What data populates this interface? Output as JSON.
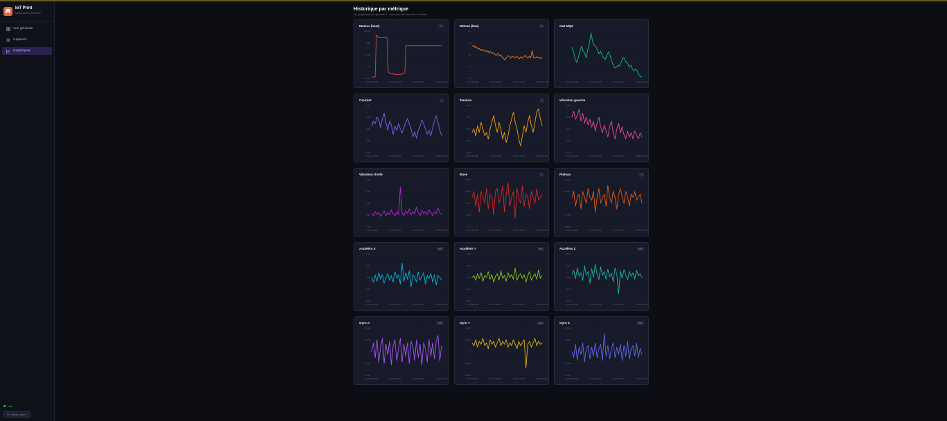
{
  "sidebar": {
    "brand_title": "IoT Print",
    "brand_subtitle": "Maintenance prédictive",
    "items": [
      {
        "label": "Vue générale",
        "icon": "dashboard-icon",
        "active": false
      },
      {
        "label": "Capteurs",
        "icon": "chip-icon",
        "active": false
      },
      {
        "label": "Graphiques",
        "icon": "chart-icon",
        "active": true
      }
    ],
    "status": "Live",
    "device": "ID : Wokko Ligne F"
  },
  "page": {
    "title": "Historique par métrique",
    "subtitle": "Un graphique par grandeur · mise jour de données fraîcheur"
  },
  "colors": {
    "background": "#0c0e14",
    "card": "#171b29",
    "accent": "#7c5cff"
  },
  "chart_data": [
    {
      "type": "line",
      "title": "Moteur (haut)",
      "unit": "°C",
      "color": "#ef4444",
      "ylim": [
        0.82,
        1.18
      ],
      "yticks": [
        "0.8275",
        "0.96",
        "1.1025",
        "1.14",
        "1.1775"
      ],
      "xticks": [
        "17:29:29.969",
        "17:30:19.440",
        "17:32:19.787",
        "18:03:01.144"
      ],
      "values": [
        0.83,
        0.83,
        0.83,
        0.83,
        1.15,
        1.14,
        1.13,
        1.13,
        1.13,
        1.13,
        1.13,
        1.13,
        1.13,
        1.13,
        0.87,
        0.86,
        0.86,
        0.86,
        0.86,
        0.85,
        0.85,
        0.85,
        0.85,
        0.85,
        0.85,
        0.85,
        0.86,
        0.86,
        0.86,
        1.07,
        1.07,
        1.07,
        1.07,
        1.07,
        1.07,
        1.07,
        1.07,
        1.07,
        1.07,
        1.07,
        1.07,
        1.07,
        1.07,
        1.07,
        1.07,
        1.07,
        1.07,
        1.07,
        1.07,
        1.07,
        1.07,
        1.07,
        1.07,
        1.07,
        1.07,
        1.07,
        1.07,
        1.07,
        1.07,
        1.07
      ]
    },
    {
      "type": "line",
      "title": "Moteur (bas)",
      "unit": "°C",
      "color": "#f97316",
      "ylim": [
        40,
        55
      ],
      "yticks": [
        "40",
        "44",
        "48",
        "51",
        "55"
      ],
      "xticks": [
        "17:29:29.969",
        "17:30:19.440",
        "17:32:19.787",
        "18:03:01.144"
      ],
      "values": [
        50.2,
        50.5,
        49.8,
        50.1,
        49.3,
        49.6,
        48.9,
        49.2,
        48.7,
        49.0,
        48.4,
        48.8,
        48.1,
        48.5,
        47.9,
        48.2,
        47.6,
        47.3,
        48.0,
        47.1,
        47.5,
        46.8,
        46.3,
        45.9,
        46.5,
        47.2,
        47.0,
        46.4,
        47.1,
        46.8,
        46.5,
        47.0,
        46.7,
        46.2,
        46.9,
        46.4,
        46.8,
        47.3,
        46.9,
        46.6,
        47.0,
        46.5,
        48.8,
        46.7,
        46.4,
        46.9,
        46.6,
        46.8,
        46.3,
        46.5
      ]
    },
    {
      "type": "line",
      "title": "Gaz MQ2",
      "unit": "",
      "color": "#10b981",
      "ylim": [
        480,
        980
      ],
      "yticks": [
        "~",
        "",
        "",
        ""
      ],
      "xticks": [
        "17:29:29.969",
        "17:30:19.440",
        "17:32:19.787",
        "18:03:01.144"
      ],
      "values": [
        810,
        760,
        690,
        650,
        700,
        760,
        820,
        770,
        750,
        700,
        790,
        850,
        960,
        870,
        830,
        820,
        780,
        740,
        770,
        720,
        700,
        680,
        730,
        760,
        720,
        660,
        620,
        590,
        600,
        620,
        610,
        650,
        700,
        690,
        650,
        640,
        600,
        620,
        580,
        560,
        580,
        560,
        520,
        500,
        495
      ]
    },
    {
      "type": "line",
      "title": "Courant",
      "unit": "A",
      "color": "#8b5cf6",
      "ylim": [
        0.38,
        0.74
      ],
      "yticks": [
        "0.74",
        "0.65",
        "0.56",
        "0.47",
        "0.38"
      ],
      "xticks": [
        "17:29:29.969",
        "17:30:19.440",
        "17:32:19.787",
        "18:03:01.144"
      ],
      "values": [
        0.58,
        0.62,
        0.6,
        0.65,
        0.63,
        0.57,
        0.64,
        0.68,
        0.61,
        0.55,
        0.62,
        0.59,
        0.52,
        0.58,
        0.55,
        0.6,
        0.56,
        0.53,
        0.57,
        0.61,
        0.64,
        0.6,
        0.56,
        0.5,
        0.54,
        0.49,
        0.55,
        0.58,
        0.63,
        0.6,
        0.56,
        0.52,
        0.55,
        0.51,
        0.57,
        0.62,
        0.66,
        0.61,
        0.55,
        0.51
      ]
    },
    {
      "type": "line",
      "title": "Tension",
      "unit": "V",
      "color": "#f59e0b",
      "ylim": [
        24.0,
        25.4
      ],
      "yticks": [
        "25.4",
        "25.0",
        "24.7",
        "24.4",
        "24.0"
      ],
      "xticks": [
        "17:29:29.969",
        "17:30:19.440",
        "17:32:19.787",
        "18:03:01.144"
      ],
      "values": [
        24.6,
        24.7,
        24.5,
        24.8,
        24.6,
        24.9,
        24.7,
        24.5,
        24.6,
        24.4,
        24.7,
        24.9,
        25.1,
        24.8,
        24.6,
        24.9,
        24.7,
        24.4,
        24.6,
        24.3,
        24.5,
        24.8,
        25.0,
        25.2,
        24.9,
        24.7,
        24.4,
        24.2,
        24.5,
        24.8,
        24.6,
        24.9,
        25.1,
        24.8,
        24.6,
        24.9,
        25.2,
        25.3,
        25.0,
        24.8
      ]
    },
    {
      "type": "line",
      "title": "Vibration gauche",
      "unit": "",
      "color": "#ec4899",
      "ylim": [
        0.2,
        0.44
      ],
      "yticks": [
        "0.44",
        "0.38",
        "0.32",
        "0.26",
        "0.20"
      ],
      "xticks": [
        "17:29:29.969",
        "17:30:19.440",
        "17:32:19.787",
        "18:03:01.144"
      ],
      "values": [
        0.38,
        0.41,
        0.37,
        0.39,
        0.42,
        0.36,
        0.4,
        0.35,
        0.38,
        0.34,
        0.37,
        0.33,
        0.36,
        0.31,
        0.35,
        0.38,
        0.33,
        0.3,
        0.34,
        0.31,
        0.28,
        0.33,
        0.36,
        0.3,
        0.27,
        0.32,
        0.35,
        0.3,
        0.33,
        0.29,
        0.27,
        0.31,
        0.28,
        0.3,
        0.27,
        0.31,
        0.29,
        0.27,
        0.3,
        0.28
      ]
    },
    {
      "type": "line",
      "title": "Vibration droite",
      "unit": "",
      "color": "#c026d3",
      "ylim": [
        0.0,
        0.5
      ],
      "yticks": [
        "0.50",
        "0.40",
        "0.30",
        "0.20",
        "0.10"
      ],
      "xticks": [
        "17:29:29.969",
        "17:30:19.440",
        "17:32:19.787",
        "18:03:01.144"
      ],
      "values": [
        0.14,
        0.12,
        0.16,
        0.13,
        0.15,
        0.11,
        0.14,
        0.17,
        0.12,
        0.15,
        0.13,
        0.18,
        0.14,
        0.12,
        0.16,
        0.13,
        0.42,
        0.15,
        0.12,
        0.17,
        0.14,
        0.19,
        0.13,
        0.16,
        0.14,
        0.21,
        0.15,
        0.12,
        0.17,
        0.14,
        0.16,
        0.13,
        0.18,
        0.15,
        0.12,
        0.16,
        0.14,
        0.2,
        0.15,
        0.13
      ]
    },
    {
      "type": "line",
      "title": "Buse",
      "unit": "°C",
      "color": "#dc2626",
      "ylim": [
        -0.1,
        0.06
      ],
      "yticks": [
        "0.051",
        "0.023",
        "-0.01",
        "-0.04",
        "-0.1"
      ],
      "xticks": [
        "17:29:29.969",
        "17:30:19.440",
        "17:32:19.787",
        "18:03:01.144"
      ],
      "values": [
        0.0,
        0.02,
        -0.03,
        0.01,
        -0.05,
        0.02,
        0.0,
        -0.02,
        0.03,
        -0.04,
        0.01,
        0.0,
        -0.06,
        0.02,
        0.03,
        -0.02,
        0.0,
        0.04,
        -0.05,
        0.01,
        0.05,
        -0.03,
        0.0,
        0.02,
        -0.07,
        0.03,
        0.0,
        -0.02,
        0.04,
        -0.03,
        0.01,
        0.0,
        -0.04,
        0.02,
        0.0,
        -0.02,
        0.03,
        -0.01,
        0.0,
        0.01
      ]
    },
    {
      "type": "line",
      "title": "Plateau",
      "unit": "°C",
      "color": "#ea580c",
      "ylim": [
        -0.1,
        0.06
      ],
      "yticks": [
        "0.0504",
        "0.0252",
        "0",
        "-0.025",
        "-0.0504"
      ],
      "xticks": [
        "17:29:29.969",
        "17:30:19.440",
        "17:32:19.787",
        "18:03:01.144"
      ],
      "values": [
        0.0,
        0.02,
        -0.03,
        0.0,
        0.01,
        -0.04,
        0.02,
        0.0,
        -0.02,
        0.03,
        0.0,
        -0.01,
        0.02,
        -0.05,
        0.0,
        0.03,
        -0.02,
        0.0,
        0.01,
        -0.03,
        0.04,
        0.0,
        -0.02,
        0.02,
        0.0,
        -0.04,
        0.01,
        0.03,
        0.0,
        -0.02,
        0.02,
        0.0,
        -0.03,
        0.01,
        0.0,
        0.02,
        -0.01,
        0.0,
        0.01,
        -0.02
      ]
    },
    {
      "type": "line",
      "title": "Accéléro X",
      "unit": "m/s²",
      "color": "#06b6d4",
      "ylim": [
        -0.05,
        0.05
      ],
      "yticks": [
        "0.04",
        "0.02",
        "0.00",
        "-0.02",
        "-0.04"
      ],
      "xticks": [
        "17:29:29.969",
        "17:30:19.440",
        "17:32:19.787",
        "18:03:01.144"
      ],
      "values": [
        0.0,
        -0.01,
        0.005,
        -0.008,
        0.01,
        -0.004,
        0.006,
        -0.012,
        0.0,
        0.008,
        -0.006,
        0.004,
        -0.01,
        0.012,
        -0.002,
        0.006,
        -0.014,
        0.03,
        -0.008,
        0.01,
        -0.004,
        0.014,
        -0.02,
        0.006,
        0.0,
        -0.01,
        0.012,
        -0.006,
        0.002,
        0.01,
        -0.014,
        0.004,
        -0.002,
        0.008,
        -0.01,
        0.006,
        -0.016,
        0.004,
        0.0,
        -0.006
      ]
    },
    {
      "type": "line",
      "title": "Accéléro Y",
      "unit": "m/s²",
      "color": "#84cc16",
      "ylim": [
        -0.05,
        0.05
      ],
      "yticks": [
        "0.04",
        "0.02",
        "0.00",
        "-0.02",
        "-0.04"
      ],
      "xticks": [
        "17:29:29.969",
        "17:30:19.440",
        "17:32:19.787",
        "18:03:01.144"
      ],
      "values": [
        0.0,
        0.004,
        -0.006,
        0.008,
        -0.002,
        0.01,
        -0.008,
        0.004,
        0.0,
        0.012,
        -0.004,
        0.006,
        -0.01,
        0.002,
        0.008,
        -0.006,
        0.014,
        -0.002,
        0.004,
        -0.008,
        0.01,
        0.0,
        0.006,
        -0.004,
        0.02,
        -0.006,
        0.004,
        0.008,
        -0.002,
        0.006,
        -0.01,
        0.004,
        0.012,
        -0.006,
        0.002,
        0.008,
        -0.004,
        0.016,
        -0.002,
        0.004
      ]
    },
    {
      "type": "line",
      "title": "Accéléro Z",
      "unit": "m/s²",
      "color": "#14b8a6",
      "ylim": [
        9.76,
        9.84
      ],
      "yticks": [
        "9.84",
        "9.82",
        "9.80",
        "9.78",
        "9.76"
      ],
      "xticks": [
        "17:29:29.969",
        "17:30:19.440",
        "17:32:19.787",
        "18:03:01.144"
      ],
      "values": [
        9.805,
        9.812,
        9.798,
        9.816,
        9.802,
        9.808,
        9.795,
        9.82,
        9.804,
        9.81,
        9.79,
        9.815,
        9.8,
        9.822,
        9.806,
        9.796,
        9.818,
        9.803,
        9.81,
        9.797,
        9.814,
        9.801,
        9.807,
        9.793,
        9.816,
        9.805,
        9.772,
        9.811,
        9.799,
        9.813,
        9.804,
        9.796,
        9.81,
        9.802,
        9.808,
        9.797,
        9.812,
        9.803,
        9.806,
        9.8
      ]
    },
    {
      "type": "line",
      "title": "Gyro X",
      "unit": "rad/s",
      "color": "#a855f7",
      "ylim": [
        -0.016,
        0.016
      ],
      "yticks": [
        "0.016",
        "0.008",
        "0",
        "-0.008",
        "-0.016"
      ],
      "xticks": [
        "17:29:29.969",
        "17:30:19.440",
        "17:32:19.787",
        "18:03:01.144"
      ],
      "values": [
        0.0,
        0.006,
        -0.004,
        0.008,
        -0.007,
        0.003,
        0.009,
        -0.008,
        0.005,
        -0.002,
        0.007,
        -0.009,
        0.004,
        0.008,
        -0.006,
        0.002,
        0.009,
        -0.007,
        0.005,
        -0.003,
        0.006,
        -0.008,
        0.007,
        0.003,
        -0.006,
        0.008,
        -0.004,
        0.005,
        -0.009,
        0.006,
        0.002,
        -0.007,
        0.008,
        -0.003,
        0.006,
        -0.005,
        0.007,
        0.011,
        -0.006,
        0.004
      ]
    },
    {
      "type": "line",
      "title": "Gyro Y",
      "unit": "rad/s",
      "color": "#eab308",
      "ylim": [
        -0.016,
        0.016
      ],
      "yticks": [
        "0.016",
        "0.008",
        "0",
        "-0.008",
        "-0.016"
      ],
      "xticks": [
        "17:29:29.969",
        "17:30:19.440",
        "17:32:19.787",
        "18:03:01.144"
      ],
      "values": [
        0.006,
        0.004,
        0.008,
        0.003,
        0.007,
        0.005,
        0.009,
        0.004,
        0.006,
        0.002,
        0.008,
        0.005,
        0.007,
        0.003,
        0.006,
        0.009,
        0.004,
        0.007,
        0.005,
        0.008,
        0.003,
        0.006,
        0.004,
        0.008,
        0.005,
        0.002,
        0.007,
        0.004,
        0.006,
        0.008,
        -0.011,
        0.005,
        0.007,
        0.003,
        0.006,
        0.009,
        0.004,
        0.007,
        0.005,
        0.006
      ]
    },
    {
      "type": "line",
      "title": "Gyro Z",
      "unit": "rad/s",
      "color": "#6366f1",
      "ylim": [
        -0.016,
        0.016
      ],
      "yticks": [
        "0.016",
        "0.008",
        "0",
        "-0.008",
        "-0.016"
      ],
      "xticks": [
        "17:29:29.969",
        "17:30:19.440",
        "17:32:19.787",
        "18:03:01.144"
      ],
      "values": [
        0.0,
        -0.004,
        0.005,
        -0.006,
        0.003,
        -0.002,
        0.006,
        -0.007,
        0.002,
        0.004,
        -0.005,
        0.003,
        -0.003,
        0.006,
        -0.004,
        0.002,
        0.005,
        -0.006,
        0.012,
        -0.003,
        0.004,
        -0.005,
        0.002,
        0.006,
        -0.004,
        0.003,
        -0.002,
        0.005,
        -0.006,
        0.004,
        -0.003,
        0.007,
        -0.005,
        0.002,
        0.004,
        -0.003,
        0.006,
        -0.004,
        0.002,
        -0.002
      ]
    }
  ]
}
